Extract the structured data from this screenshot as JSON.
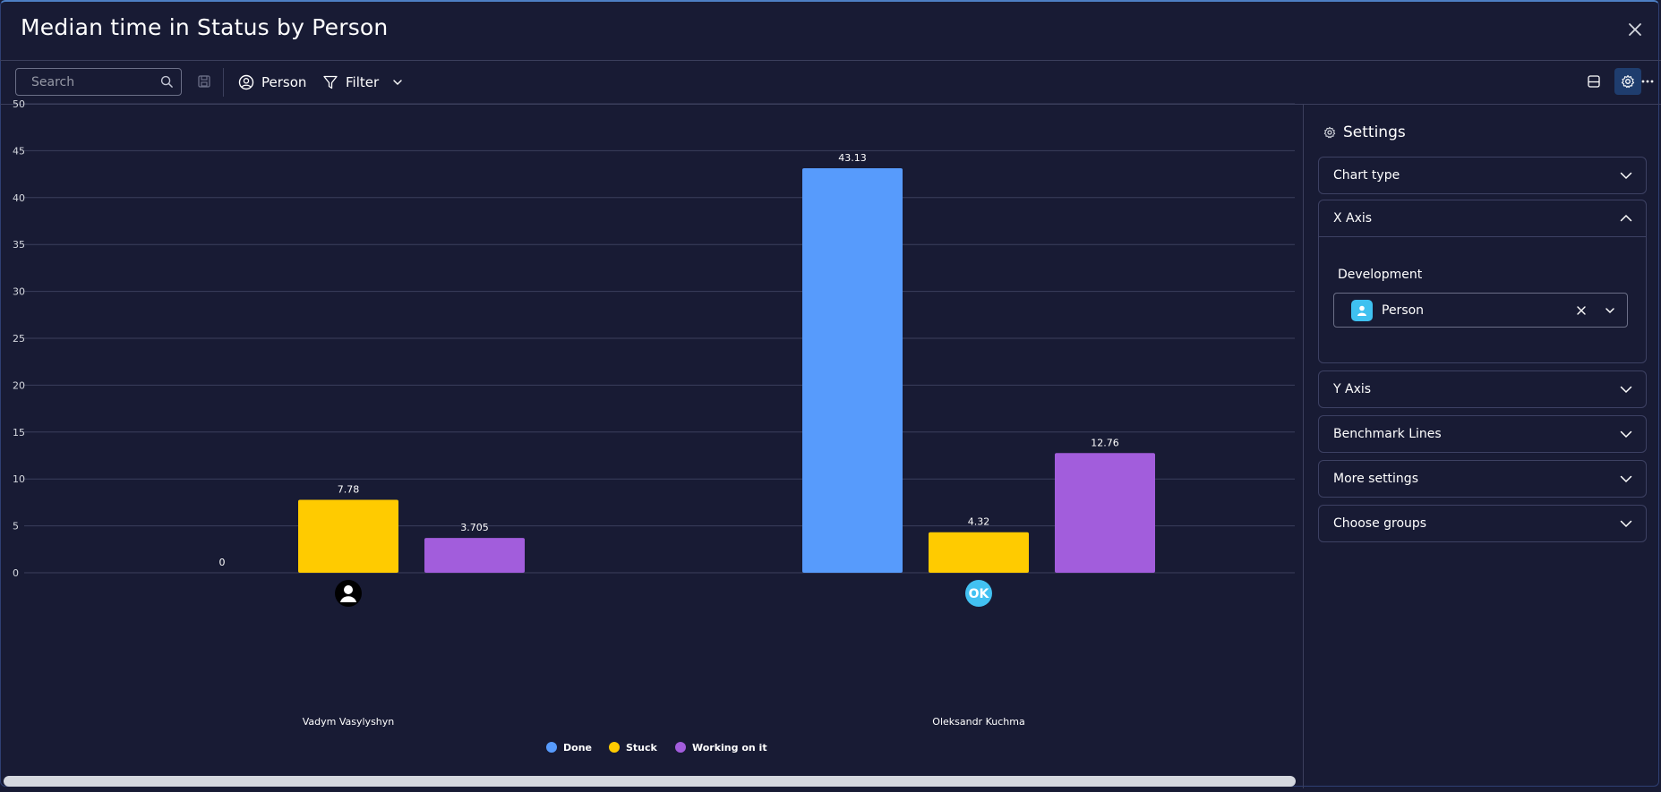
{
  "window": {
    "title": "Median time in Status by Person"
  },
  "toolbar": {
    "search_placeholder": "Search",
    "person_label": "Person",
    "filter_label": "Filter"
  },
  "settings": {
    "title": "Settings",
    "sections": {
      "chart_type": "Chart type",
      "x_axis": "X Axis",
      "y_axis": "Y Axis",
      "benchmark_lines": "Benchmark Lines",
      "more_settings": "More settings",
      "choose_groups": "Choose groups"
    },
    "x_axis_board": "Development",
    "x_axis_column": "Person"
  },
  "chart_data": {
    "type": "bar",
    "categories": [
      "Vadym Vasylyshyn",
      "Oleksandr Kuchma"
    ],
    "avatars": [
      {
        "kind": "person-icon",
        "initials": "",
        "color": "#000000"
      },
      {
        "kind": "initials",
        "initials": "OK",
        "color": "#42c1f2"
      }
    ],
    "series": [
      {
        "name": "Done",
        "color": "#579bfc",
        "values": [
          0,
          43.13
        ],
        "labels": [
          "0",
          "43.13"
        ]
      },
      {
        "name": "Stuck",
        "color": "#ffcb00",
        "values": [
          7.78,
          4.32
        ],
        "labels": [
          "7.78",
          "4.32"
        ]
      },
      {
        "name": "Working on it",
        "color": "#a25ddc",
        "values": [
          3.705,
          12.76
        ],
        "labels": [
          "3.705",
          "12.76"
        ]
      }
    ],
    "yticks": [
      0,
      5,
      10,
      15,
      20,
      25,
      30,
      35,
      40,
      45,
      50
    ],
    "ylim": [
      0,
      50
    ],
    "grid": true,
    "legend": "bottom-center"
  }
}
